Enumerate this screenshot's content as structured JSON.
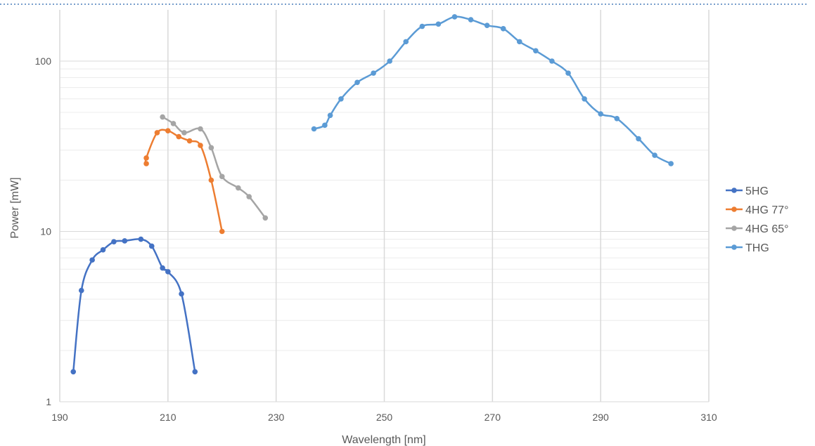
{
  "chart_data": {
    "type": "line",
    "xlabel": "Wavelength [nm]",
    "ylabel": "Power [mW]",
    "x_scale": "linear",
    "y_scale": "log",
    "xlim": [
      190,
      310
    ],
    "ylim": [
      1,
      200
    ],
    "x_ticks": [
      190,
      210,
      230,
      250,
      270,
      290,
      310
    ],
    "y_ticks": [
      1,
      10,
      100
    ],
    "grid": true,
    "legend_position": "right",
    "series": [
      {
        "name": "5HG",
        "color": "#4472c4",
        "x": [
          192.5,
          194,
          196,
          198,
          200,
          202,
          205,
          207,
          209,
          210,
          212.5,
          215
        ],
        "y": [
          1.5,
          4.5,
          6.8,
          7.8,
          8.7,
          8.8,
          9.0,
          8.2,
          6.1,
          5.8,
          4.3,
          1.5
        ]
      },
      {
        "name": "4HG 77°",
        "color": "#ed7d31",
        "x": [
          206,
          206,
          208,
          210,
          212,
          214,
          216,
          218,
          220
        ],
        "y": [
          25,
          27,
          38,
          39,
          36,
          34,
          32,
          20,
          10
        ]
      },
      {
        "name": "4HG 65°",
        "color": "#a5a5a5",
        "x": [
          209,
          211,
          213,
          216,
          218,
          220,
          223,
          225,
          228
        ],
        "y": [
          47,
          43,
          38,
          40,
          31,
          21,
          18,
          16,
          12
        ]
      },
      {
        "name": "THG",
        "color": "#5b9bd5",
        "x": [
          237,
          239,
          240,
          242,
          245,
          248,
          251,
          254,
          257,
          260,
          263,
          266,
          269,
          272,
          275,
          278,
          281,
          284,
          287,
          290,
          293,
          297,
          300,
          303
        ],
        "y": [
          40,
          42,
          48,
          60,
          75,
          85,
          100,
          130,
          160,
          165,
          182,
          175,
          162,
          155,
          130,
          115,
          100,
          85,
          60,
          49,
          46,
          35,
          28,
          25
        ]
      }
    ]
  }
}
